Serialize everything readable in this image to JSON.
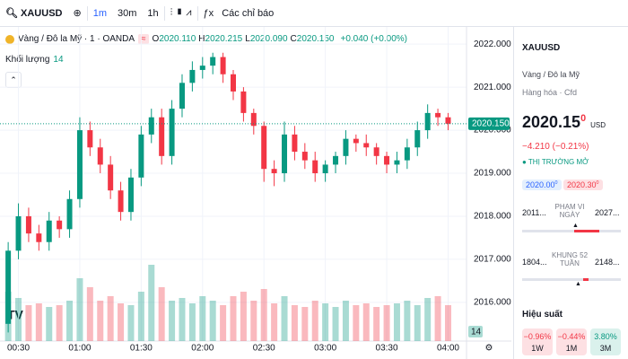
{
  "toolbar": {
    "symbol": "XAUUSD",
    "intervals": [
      "1m",
      "30m",
      "1h"
    ],
    "indicators": "Các chỉ báo"
  },
  "legend": {
    "title": "Vàng / Đô la Mỹ · 1 · OANDA",
    "ohlc": [
      {
        "k": "O",
        "v": "2020.110"
      },
      {
        "k": "H",
        "v": "2020.215"
      },
      {
        "k": "L",
        "v": "2020.090"
      },
      {
        "k": "C",
        "v": "2020.150"
      }
    ],
    "change": "+0.040 (+0.00%)",
    "volume_label": "Khối lượng",
    "volume_value": "14"
  },
  "chart_data": {
    "type": "candlestick",
    "x": [
      "00:25",
      "00:30",
      "00:35",
      "00:40",
      "00:45",
      "00:50",
      "00:55",
      "01:00",
      "01:05",
      "01:10",
      "01:15",
      "01:20",
      "01:25",
      "01:30",
      "01:35",
      "01:40",
      "01:45",
      "01:50",
      "01:55",
      "02:00",
      "02:05",
      "02:10",
      "02:15",
      "02:20",
      "02:25",
      "02:30",
      "02:35",
      "02:40",
      "02:45",
      "02:50",
      "02:55",
      "03:00",
      "03:05",
      "03:10",
      "03:15",
      "03:20",
      "03:25",
      "03:30",
      "03:35",
      "03:40",
      "03:45",
      "03:50",
      "03:55",
      "04:00"
    ],
    "open": [
      2015.5,
      2017.2,
      2018.0,
      2017.6,
      2017.4,
      2017.9,
      2017.7,
      2018.4,
      2020.0,
      2019.6,
      2019.2,
      2018.6,
      2018.1,
      2018.9,
      2019.9,
      2020.3,
      2019.4,
      2020.5,
      2021.1,
      2021.4,
      2021.5,
      2021.7,
      2021.3,
      2020.9,
      2020.4,
      2020.1,
      2019.1,
      2019.0,
      2019.9,
      2019.5,
      2019.3,
      2019.0,
      2019.2,
      2019.4,
      2019.8,
      2019.7,
      2019.6,
      2019.4,
      2019.2,
      2019.3,
      2019.6,
      2020.0,
      2020.4,
      2020.3
    ],
    "high": [
      2017.4,
      2018.3,
      2018.2,
      2017.8,
      2018.1,
      2018.0,
      2018.6,
      2020.3,
      2020.2,
      2019.8,
      2019.4,
      2018.8,
      2019.1,
      2020.1,
      2020.5,
      2020.5,
      2020.7,
      2021.3,
      2021.6,
      2021.7,
      2021.8,
      2021.8,
      2021.4,
      2021.0,
      2020.5,
      2020.2,
      2019.3,
      2020.2,
      2020.1,
      2019.7,
      2019.5,
      2019.3,
      2019.5,
      2020.0,
      2019.9,
      2019.9,
      2019.7,
      2019.5,
      2019.5,
      2019.8,
      2020.2,
      2020.6,
      2020.5,
      2020.4
    ],
    "low": [
      2015.3,
      2017.0,
      2017.4,
      2017.2,
      2017.2,
      2017.5,
      2017.5,
      2018.2,
      2019.4,
      2019.0,
      2018.4,
      2017.9,
      2017.9,
      2018.7,
      2019.7,
      2019.2,
      2019.2,
      2020.3,
      2020.9,
      2021.2,
      2021.3,
      2021.1,
      2020.7,
      2020.2,
      2019.9,
      2018.8,
      2018.7,
      2018.8,
      2019.3,
      2019.1,
      2018.8,
      2018.8,
      2019.0,
      2019.2,
      2019.5,
      2019.4,
      2019.2,
      2019.0,
      2019.0,
      2019.1,
      2019.4,
      2019.8,
      2020.1,
      2020.0
    ],
    "close": [
      2017.2,
      2018.0,
      2017.6,
      2017.4,
      2017.9,
      2017.7,
      2018.4,
      2020.0,
      2019.6,
      2019.2,
      2018.6,
      2018.1,
      2018.9,
      2019.9,
      2020.3,
      2019.4,
      2020.5,
      2021.1,
      2021.4,
      2021.5,
      2021.7,
      2021.3,
      2020.9,
      2020.4,
      2020.1,
      2019.1,
      2019.0,
      2019.9,
      2019.5,
      2019.3,
      2019.0,
      2019.2,
      2019.4,
      2019.8,
      2019.7,
      2019.6,
      2019.4,
      2019.2,
      2019.3,
      2019.6,
      2020.0,
      2020.4,
      2020.3,
      2020.15
    ],
    "volume": [
      55,
      48,
      40,
      42,
      38,
      40,
      45,
      70,
      60,
      45,
      50,
      42,
      40,
      55,
      85,
      60,
      45,
      48,
      42,
      50,
      45,
      40,
      50,
      55,
      45,
      58,
      42,
      50,
      40,
      38,
      45,
      42,
      38,
      45,
      40,
      42,
      38,
      40,
      42,
      45,
      40,
      48,
      50,
      40
    ],
    "vlim": [
      0,
      100
    ],
    "up_color": "#089981",
    "down_color": "#f23645",
    "ylim": [
      2015.1,
      2022.4
    ],
    "yticks": [
      {
        "value": 2016,
        "label": "2016.000"
      },
      {
        "value": 2017,
        "label": "2017.000"
      },
      {
        "value": 2018,
        "label": "2018.000"
      },
      {
        "value": 2019,
        "label": "2019.000"
      },
      {
        "value": 2020,
        "label": "2020.000"
      },
      {
        "value": 2021,
        "label": "2021.000"
      },
      {
        "value": 2022,
        "label": "2022.000"
      }
    ],
    "xlim": [
      "00:21",
      "04:09"
    ],
    "xticks": [
      "00:30",
      "01:00",
      "01:30",
      "02:00",
      "02:30",
      "03:00",
      "03:30",
      "04:00"
    ],
    "last_price": {
      "value": 2020.15,
      "label": "2020.150"
    },
    "grid": true
  },
  "sidebar": {
    "symbol": "XAUUSD",
    "name": "Vàng / Đô la Mỹ",
    "category": "Hàng hóa · Cfd",
    "price_main": "2020.15",
    "price_sup": "0",
    "currency": "USD",
    "change": "−4.210 (−0.21%)",
    "status": "THỊ TRƯỜNG MỞ",
    "bid_main": "2020.00",
    "bid_sup": "0",
    "ask_main": "2020.30",
    "ask_sup": "0",
    "day_range": {
      "low": "2011...",
      "label": "PHẠM VI NGÀY",
      "high": "2027..."
    },
    "week52_range": {
      "low": "1804...",
      "label": "KHUNG 52 TUẦN",
      "high": "2148..."
    },
    "performance_title": "Hiệu suất",
    "performance": [
      {
        "value": "−0.96%",
        "period": "1W"
      },
      {
        "value": "−0.44%",
        "period": "1M"
      },
      {
        "value": "3.80%",
        "period": "3M"
      }
    ]
  }
}
